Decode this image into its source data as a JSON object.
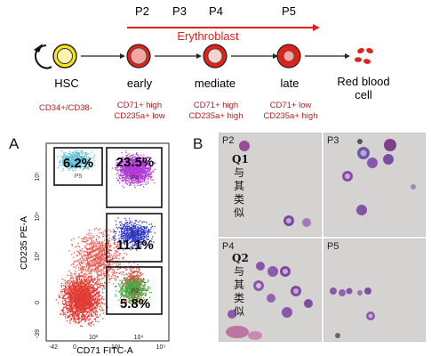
{
  "top_diagram": {
    "stage_labels": [
      "P2",
      "P3",
      "P4",
      "P5"
    ],
    "erythroblast_label": "Erythroblast",
    "cells": [
      {
        "name": "HSC",
        "marker_line1": "CD34+/CD38-",
        "marker_line2": ""
      },
      {
        "name": "early",
        "marker_line1": "CD71+ high",
        "marker_line2": "CD235a+ low"
      },
      {
        "name": "mediate",
        "marker_line1": "CD71+ high",
        "marker_line2": "CD235a+ high"
      },
      {
        "name": "late",
        "marker_line1": "CD71+ low",
        "marker_line2": "CD235a+ high"
      },
      {
        "name_line1": "Red blood",
        "name_line2": "cell"
      }
    ],
    "colors": {
      "red": "#e0221b",
      "hsc_fill": "#f5e51c",
      "early_fill": "#f2a7a3",
      "text_red": "#b22222"
    }
  },
  "panel_a": {
    "letter": "A",
    "ylabel": "CD235 PE-A",
    "xlabel": "CD71 FITC-A",
    "y_ticks": [
      "10⁵",
      "10⁴",
      "10³",
      "0",
      "-39"
    ],
    "x_ticks": [
      "-42",
      "0",
      "10²",
      "10³",
      "10⁴",
      "10⁵"
    ],
    "gates": [
      {
        "name": "P5",
        "percent": "6.2%"
      },
      {
        "name": "P4",
        "percent": "23.5%"
      },
      {
        "name": "P3",
        "percent": "11.1%"
      },
      {
        "name": "P2",
        "percent": "5.8%"
      }
    ]
  },
  "panel_b": {
    "letter": "B",
    "panels": [
      {
        "label": "P2",
        "annot_q": "Q1",
        "annot_chars": [
          "与",
          "其",
          "类",
          "似"
        ]
      },
      {
        "label": "P3"
      },
      {
        "label": "P4",
        "annot_q": "Q2",
        "annot_chars": [
          "与",
          "其",
          "类",
          "似"
        ]
      },
      {
        "label": "P5"
      }
    ]
  }
}
